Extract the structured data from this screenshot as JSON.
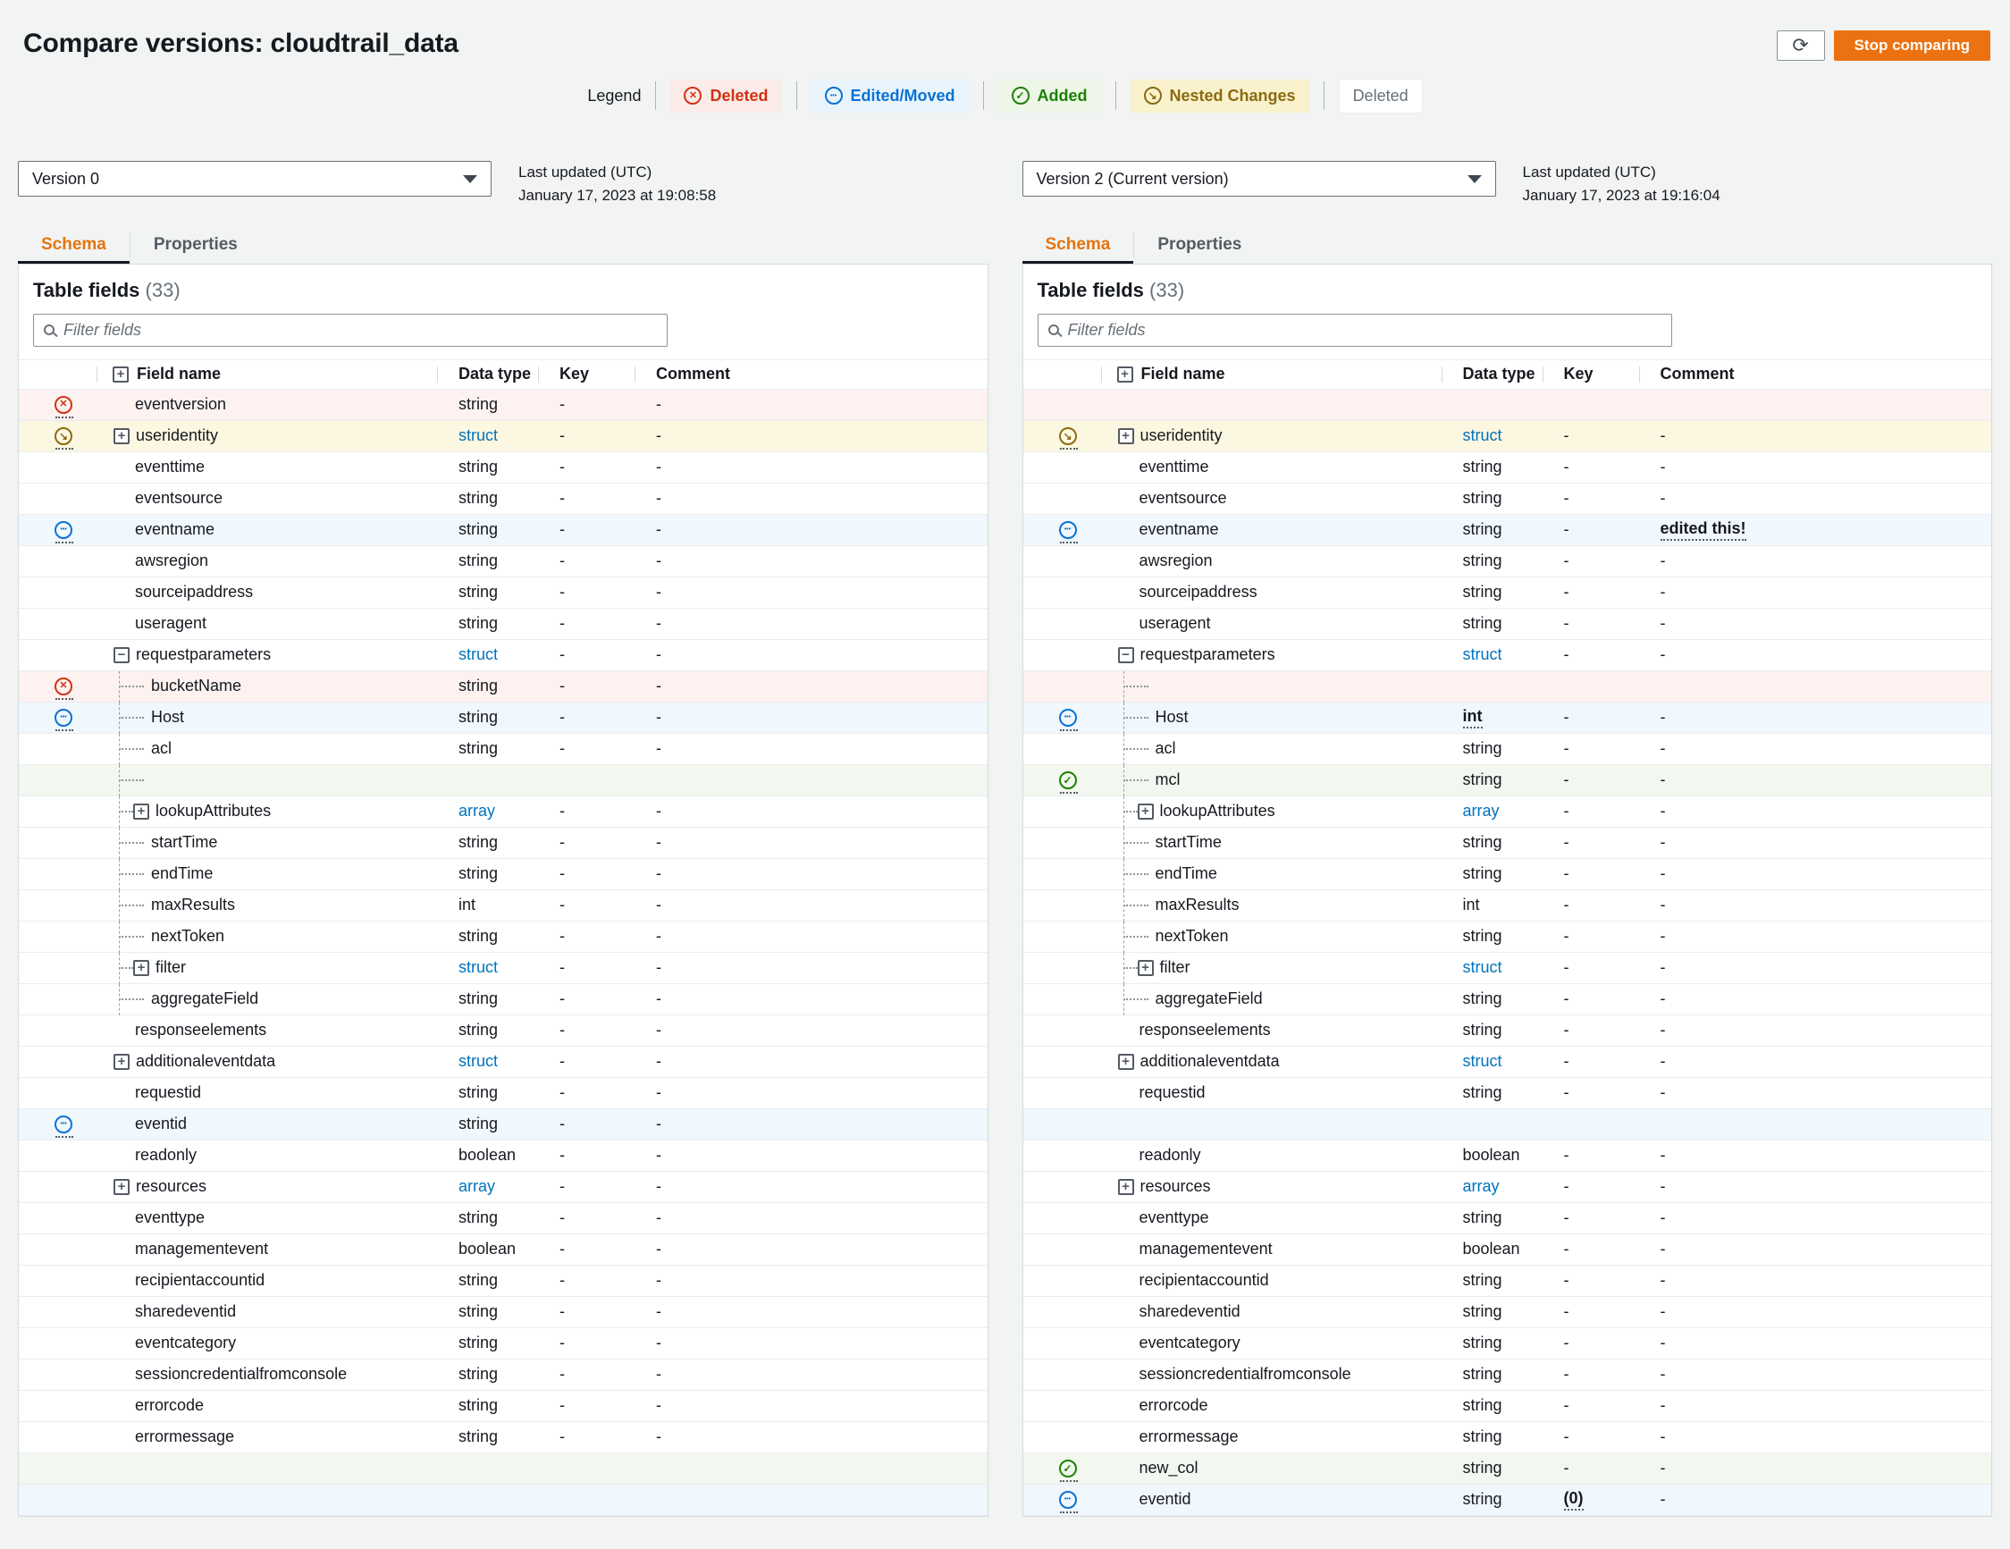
{
  "page": {
    "title": "Compare versions: cloudtrail_data"
  },
  "toolbar": {
    "stop_button_label": "Stop comparing",
    "refresh_icon": "refresh-icon"
  },
  "legend": {
    "label": "Legend",
    "items": [
      {
        "label": "Deleted",
        "kind": "deleted",
        "icon": "circle-x-icon",
        "color": "#d13212"
      },
      {
        "label": "Edited/Moved",
        "kind": "edited",
        "icon": "circle-dots-icon",
        "color": "#0972d3"
      },
      {
        "label": "Added",
        "kind": "added",
        "icon": "circle-check-icon",
        "color": "#1d8102"
      },
      {
        "label": "Nested Changes",
        "kind": "nested",
        "icon": "circle-arrow-icon",
        "color": "#8a6c10"
      },
      {
        "label": "Deleted",
        "kind": "plain",
        "color": "#687078"
      }
    ]
  },
  "colors": {
    "accent_orange": "#ec7211",
    "link_blue": "#0073bb",
    "deleted_red": "#d13212",
    "edited_blue": "#0972d3",
    "added_green": "#1d8102",
    "nested_gold": "#8a6c10"
  },
  "panels": [
    {
      "version": "Version 0",
      "updated_label": "Last updated (UTC)",
      "updated_value": "January 17, 2023 at 19:08:58",
      "tabs": [
        {
          "label": "Schema"
        },
        {
          "label": "Properties"
        }
      ],
      "table_title": "Table fields",
      "table_count": "(33)",
      "filter_placeholder": "Filter fields",
      "columns": [
        "Field name",
        "Data type",
        "Key",
        "Comment"
      ],
      "rows": [
        {
          "name": "eventversion",
          "type": "string",
          "key": "-",
          "comment": "-",
          "marker": "deleted",
          "bg": "deleted"
        },
        {
          "name": "useridentity",
          "type": "struct",
          "typeStyle": "link",
          "key": "-",
          "comment": "-",
          "marker": "nested",
          "bg": "nested",
          "expander": "plus"
        },
        {
          "name": "eventtime",
          "type": "string",
          "key": "-",
          "comment": "-"
        },
        {
          "name": "eventsource",
          "type": "string",
          "key": "-",
          "comment": "-"
        },
        {
          "name": "eventname",
          "type": "string",
          "key": "-",
          "comment": "-",
          "marker": "edited",
          "bg": "edited"
        },
        {
          "name": "awsregion",
          "type": "string",
          "key": "-",
          "comment": "-"
        },
        {
          "name": "sourceipaddress",
          "type": "string",
          "key": "-",
          "comment": "-"
        },
        {
          "name": "useragent",
          "type": "string",
          "key": "-",
          "comment": "-"
        },
        {
          "name": "requestparameters",
          "type": "struct",
          "typeStyle": "link",
          "key": "-",
          "comment": "-",
          "expander": "minus"
        },
        {
          "name": "bucketName",
          "type": "string",
          "key": "-",
          "comment": "-",
          "marker": "deleted",
          "bg": "deleted",
          "depth": 1
        },
        {
          "name": "Host",
          "type": "string",
          "key": "-",
          "comment": "-",
          "marker": "edited",
          "bg": "edited",
          "depth": 1
        },
        {
          "name": "acl",
          "type": "string",
          "key": "-",
          "comment": "-",
          "depth": 1
        },
        {
          "empty": true,
          "bg": "added",
          "depth": 1
        },
        {
          "name": "lookupAttributes",
          "type": "array",
          "typeStyle": "link",
          "key": "-",
          "comment": "-",
          "depth": 1,
          "expander": "plus"
        },
        {
          "name": "startTime",
          "type": "string",
          "key": "-",
          "comment": "-",
          "depth": 1
        },
        {
          "name": "endTime",
          "type": "string",
          "key": "-",
          "comment": "-",
          "depth": 1
        },
        {
          "name": "maxResults",
          "type": "int",
          "key": "-",
          "comment": "-",
          "depth": 1
        },
        {
          "name": "nextToken",
          "type": "string",
          "key": "-",
          "comment": "-",
          "depth": 1
        },
        {
          "name": "filter",
          "type": "struct",
          "typeStyle": "link",
          "key": "-",
          "comment": "-",
          "depth": 1,
          "expander": "plus"
        },
        {
          "name": "aggregateField",
          "type": "string",
          "key": "-",
          "comment": "-",
          "depth": 1
        },
        {
          "name": "responseelements",
          "type": "string",
          "key": "-",
          "comment": "-"
        },
        {
          "name": "additionaleventdata",
          "type": "struct",
          "typeStyle": "link",
          "key": "-",
          "comment": "-",
          "expander": "plus"
        },
        {
          "name": "requestid",
          "type": "string",
          "key": "-",
          "comment": "-"
        },
        {
          "name": "eventid",
          "type": "string",
          "key": "-",
          "comment": "-",
          "marker": "edited",
          "bg": "edited"
        },
        {
          "name": "readonly",
          "type": "boolean",
          "key": "-",
          "comment": "-"
        },
        {
          "name": "resources",
          "type": "array",
          "typeStyle": "link",
          "key": "-",
          "comment": "-",
          "expander": "plus"
        },
        {
          "name": "eventtype",
          "type": "string",
          "key": "-",
          "comment": "-"
        },
        {
          "name": "managementevent",
          "type": "boolean",
          "key": "-",
          "comment": "-"
        },
        {
          "name": "recipientaccountid",
          "type": "string",
          "key": "-",
          "comment": "-"
        },
        {
          "name": "sharedeventid",
          "type": "string",
          "key": "-",
          "comment": "-"
        },
        {
          "name": "eventcategory",
          "type": "string",
          "key": "-",
          "comment": "-"
        },
        {
          "name": "sessioncredentialfromconsole",
          "type": "string",
          "key": "-",
          "comment": "-"
        },
        {
          "name": "errorcode",
          "type": "string",
          "key": "-",
          "comment": "-"
        },
        {
          "name": "errormessage",
          "type": "string",
          "key": "-",
          "comment": "-"
        },
        {
          "empty": true,
          "bg": "added"
        },
        {
          "empty": true,
          "bg": "edited"
        }
      ]
    },
    {
      "version": "Version 2 (Current version)",
      "updated_label": "Last updated (UTC)",
      "updated_value": "January 17, 2023 at 19:16:04",
      "tabs": [
        {
          "label": "Schema"
        },
        {
          "label": "Properties"
        }
      ],
      "table_title": "Table fields",
      "table_count": "(33)",
      "filter_placeholder": "Filter fields",
      "columns": [
        "Field name",
        "Data type",
        "Key",
        "Comment"
      ],
      "rows": [
        {
          "empty": true,
          "bg": "deleted"
        },
        {
          "name": "useridentity",
          "type": "struct",
          "typeStyle": "link",
          "key": "-",
          "comment": "-",
          "marker": "nested",
          "bg": "nested",
          "expander": "plus"
        },
        {
          "name": "eventtime",
          "type": "string",
          "key": "-",
          "comment": "-"
        },
        {
          "name": "eventsource",
          "type": "string",
          "key": "-",
          "comment": "-"
        },
        {
          "name": "eventname",
          "type": "string",
          "key": "-",
          "comment": "edited this!",
          "commentStyle": "changed",
          "marker": "edited",
          "bg": "edited"
        },
        {
          "name": "awsregion",
          "type": "string",
          "key": "-",
          "comment": "-"
        },
        {
          "name": "sourceipaddress",
          "type": "string",
          "key": "-",
          "comment": "-"
        },
        {
          "name": "useragent",
          "type": "string",
          "key": "-",
          "comment": "-"
        },
        {
          "name": "requestparameters",
          "type": "struct",
          "typeStyle": "link",
          "key": "-",
          "comment": "-",
          "expander": "minus"
        },
        {
          "empty": true,
          "bg": "deleted",
          "depth": 1
        },
        {
          "name": "Host",
          "type": "int",
          "typeStyle": "changed",
          "key": "-",
          "comment": "-",
          "marker": "edited",
          "bg": "edited",
          "depth": 1
        },
        {
          "name": "acl",
          "type": "string",
          "key": "-",
          "comment": "-",
          "depth": 1
        },
        {
          "name": "mcl",
          "type": "string",
          "key": "-",
          "comment": "-",
          "marker": "added",
          "bg": "added",
          "depth": 1
        },
        {
          "name": "lookupAttributes",
          "type": "array",
          "typeStyle": "link",
          "key": "-",
          "comment": "-",
          "depth": 1,
          "expander": "plus"
        },
        {
          "name": "startTime",
          "type": "string",
          "key": "-",
          "comment": "-",
          "depth": 1
        },
        {
          "name": "endTime",
          "type": "string",
          "key": "-",
          "comment": "-",
          "depth": 1
        },
        {
          "name": "maxResults",
          "type": "int",
          "key": "-",
          "comment": "-",
          "depth": 1
        },
        {
          "name": "nextToken",
          "type": "string",
          "key": "-",
          "comment": "-",
          "depth": 1
        },
        {
          "name": "filter",
          "type": "struct",
          "typeStyle": "link",
          "key": "-",
          "comment": "-",
          "depth": 1,
          "expander": "plus"
        },
        {
          "name": "aggregateField",
          "type": "string",
          "key": "-",
          "comment": "-",
          "depth": 1
        },
        {
          "name": "responseelements",
          "type": "string",
          "key": "-",
          "comment": "-"
        },
        {
          "name": "additionaleventdata",
          "type": "struct",
          "typeStyle": "link",
          "key": "-",
          "comment": "-",
          "expander": "plus"
        },
        {
          "name": "requestid",
          "type": "string",
          "key": "-",
          "comment": "-"
        },
        {
          "empty": true,
          "bg": "edited"
        },
        {
          "name": "readonly",
          "type": "boolean",
          "key": "-",
          "comment": "-"
        },
        {
          "name": "resources",
          "type": "array",
          "typeStyle": "link",
          "key": "-",
          "comment": "-",
          "expander": "plus"
        },
        {
          "name": "eventtype",
          "type": "string",
          "key": "-",
          "comment": "-"
        },
        {
          "name": "managementevent",
          "type": "boolean",
          "key": "-",
          "comment": "-"
        },
        {
          "name": "recipientaccountid",
          "type": "string",
          "key": "-",
          "comment": "-"
        },
        {
          "name": "sharedeventid",
          "type": "string",
          "key": "-",
          "comment": "-"
        },
        {
          "name": "eventcategory",
          "type": "string",
          "key": "-",
          "comment": "-"
        },
        {
          "name": "sessioncredentialfromconsole",
          "type": "string",
          "key": "-",
          "comment": "-"
        },
        {
          "name": "errorcode",
          "type": "string",
          "key": "-",
          "comment": "-"
        },
        {
          "name": "errormessage",
          "type": "string",
          "key": "-",
          "comment": "-"
        },
        {
          "name": "new_col",
          "type": "string",
          "key": "-",
          "comment": "-",
          "marker": "added",
          "bg": "added"
        },
        {
          "name": "eventid",
          "type": "string",
          "key": "(0)",
          "keyStyle": "changed",
          "comment": "-",
          "marker": "edited",
          "bg": "edited"
        }
      ]
    }
  ]
}
